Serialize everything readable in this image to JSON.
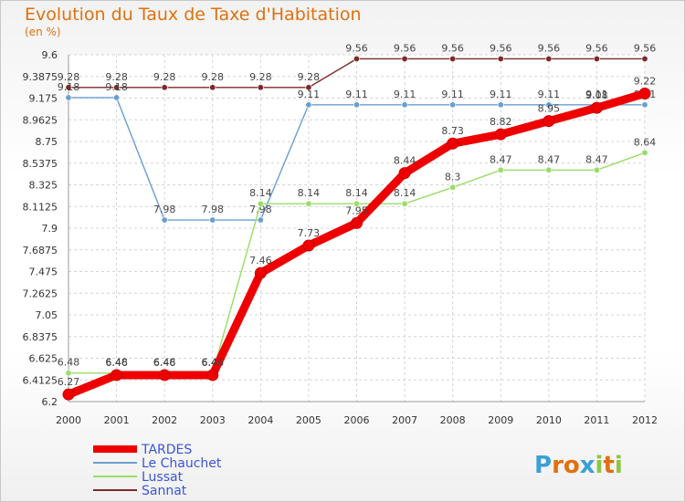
{
  "title": "Evolution du Taux de Taxe d'Habitation",
  "unit_label": "(en %)",
  "logo": {
    "letters": [
      "P",
      "r",
      "o",
      "x",
      "i",
      "t",
      "i"
    ],
    "colors": [
      "#3aa0d8",
      "#e0710e",
      "#e0710e",
      "#3aa0d8",
      "#8dc63f",
      "#e0710e",
      "#8dc63f"
    ]
  },
  "chart_data": {
    "type": "line",
    "x": [
      "2000",
      "2001",
      "2002",
      "2003",
      "2004",
      "2005",
      "2006",
      "2007",
      "2008",
      "2009",
      "2010",
      "2011",
      "2012"
    ],
    "yticks": [
      "6.2",
      "6.4125",
      "6.625",
      "6.8375",
      "7.05",
      "7.2625",
      "7.475",
      "7.6875",
      "7.9",
      "8.1125",
      "8.325",
      "8.5375",
      "8.75",
      "8.9625",
      "9.175",
      "9.3875",
      "9.6"
    ],
    "ylim": [
      6.2,
      9.6
    ],
    "grid": true,
    "legend_position": "bottom-left",
    "series": [
      {
        "name": "Sannat",
        "color": "#7b2a2a",
        "values": [
          9.28,
          9.28,
          9.28,
          9.28,
          9.28,
          9.28,
          9.56,
          9.56,
          9.56,
          9.56,
          9.56,
          9.56,
          9.56
        ],
        "labels": [
          "9.28",
          "9.28",
          "9.28",
          "9.28",
          "9.28",
          "9.28",
          "9.56",
          "9.56",
          "9.56",
          "9.56",
          "9.56",
          "9.56",
          "9.56"
        ]
      },
      {
        "name": "Le Chauchet",
        "color": "#6a9fd0",
        "values": [
          9.18,
          9.18,
          7.98,
          7.98,
          7.98,
          9.11,
          9.11,
          9.11,
          9.11,
          9.11,
          9.11,
          9.11,
          9.11
        ],
        "labels": [
          "9.18",
          "9.18",
          "7.98",
          "7.98",
          "7.98",
          "9.11",
          "9.11",
          "9.11",
          "9.11",
          "9.11",
          "9.11",
          "9.11",
          "9.11"
        ]
      },
      {
        "name": "Lussat",
        "color": "#99dd66",
        "values": [
          6.48,
          6.48,
          6.48,
          6.48,
          8.14,
          8.14,
          8.14,
          8.14,
          8.3,
          8.47,
          8.47,
          8.47,
          8.64
        ],
        "labels": [
          "6.48",
          "6.48",
          "6.48",
          "6.48",
          "8.14",
          "8.14",
          "8.14",
          "8.14",
          "8.3",
          "8.47",
          "8.47",
          "8.47",
          "8.64"
        ]
      },
      {
        "name": "TARDES",
        "color": "#ee0000",
        "values": [
          6.27,
          6.46,
          6.46,
          6.46,
          7.46,
          7.73,
          7.95,
          8.44,
          8.73,
          8.82,
          8.95,
          9.08,
          9.22
        ],
        "labels": [
          "6.27",
          "6.46",
          "6.46",
          "6.46",
          "7.46",
          "7.73",
          "7.95",
          "8.44",
          "8.73",
          "8.82",
          "8.95",
          "9.08",
          "9.22"
        ]
      }
    ],
    "legend": [
      {
        "name": "TARDES",
        "color": "#ee0000",
        "text_color": "#3a55d8"
      },
      {
        "name": "Le Chauchet",
        "color": "#6a9fd0",
        "text_color": "#3a55d8"
      },
      {
        "name": "Lussat",
        "color": "#99dd66",
        "text_color": "#3a55d8"
      },
      {
        "name": "Sannat",
        "color": "#7b2a2a",
        "text_color": "#3a55d8"
      }
    ]
  }
}
